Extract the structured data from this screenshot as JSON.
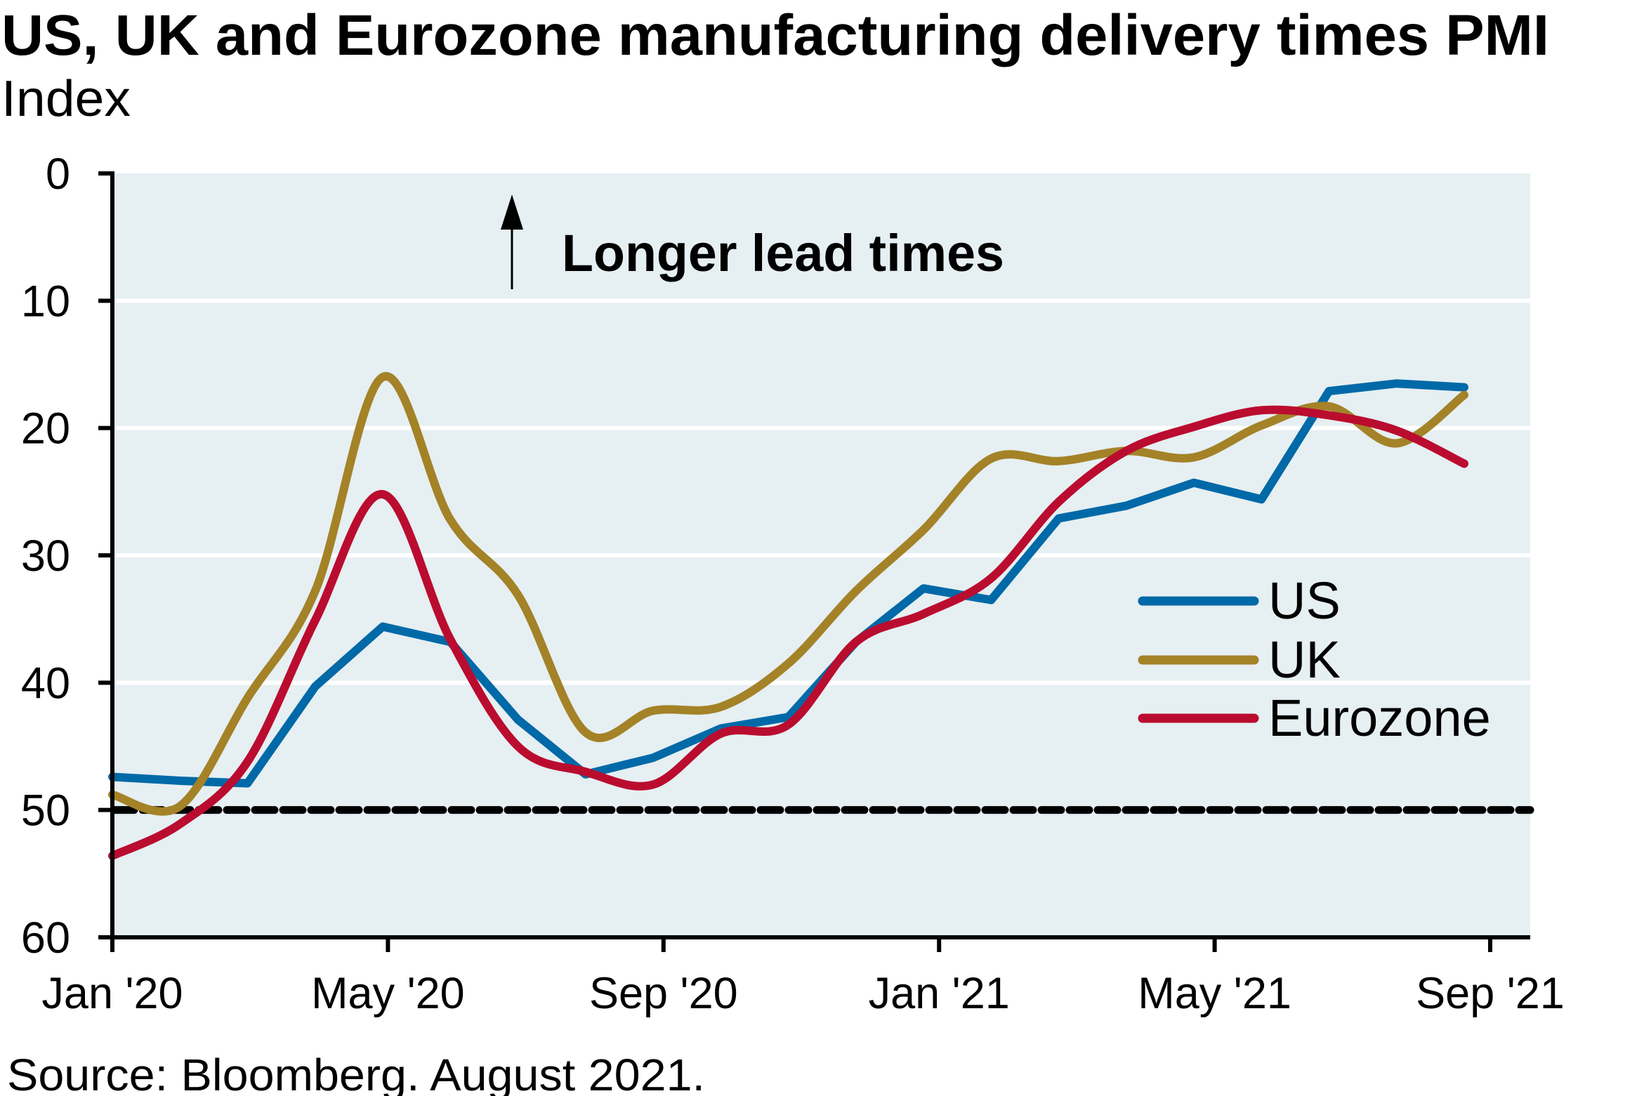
{
  "chart_data": {
    "type": "line",
    "title": "US, UK and Eurozone manufacturing delivery times PMI",
    "subtitle": "Index",
    "source": "Source: Bloomberg. August 2021.",
    "annotation": "Longer lead times",
    "xlabel": "",
    "ylabel": "Index",
    "y_inverted": true,
    "ylim": [
      0,
      60
    ],
    "yticks": [
      "0",
      "10",
      "20",
      "30",
      "40",
      "50",
      "60"
    ],
    "ytick_values": [
      0,
      10,
      20,
      30,
      40,
      50,
      60
    ],
    "xticks": [
      "Jan '20",
      "May '20",
      "Sep '20",
      "Jan '21",
      "May '21",
      "Sep '21"
    ],
    "reference_line": {
      "value": 50,
      "style": "dashed"
    },
    "grid": true,
    "legend_position": "right",
    "x": [
      "Jan '20",
      "Feb '20",
      "Mar '20",
      "Apr '20",
      "May '20",
      "Jun '20",
      "Jul '20",
      "Aug '20",
      "Sep '20",
      "Oct '20",
      "Nov '20",
      "Dec '20",
      "Jan '21",
      "Feb '21",
      "Mar '21",
      "Apr '21",
      "May '21",
      "Jun '21",
      "Jul '21",
      "Aug '21",
      "Sep '21"
    ],
    "series": [
      {
        "name": "US",
        "color": "#0069A7",
        "smooth": false,
        "values": [
          47.4,
          47.7,
          47.9,
          40.3,
          35.6,
          36.8,
          42.9,
          47.2,
          45.9,
          43.6,
          42.7,
          36.8,
          32.6,
          33.5,
          27.1,
          26.1,
          24.3,
          25.6,
          17.1,
          16.5,
          16.8
        ]
      },
      {
        "name": "UK",
        "color": "#A48227",
        "smooth": true,
        "values": [
          48.8,
          49.7,
          41.2,
          32.8,
          16.0,
          27.2,
          33.1,
          43.9,
          42.2,
          41.9,
          38.5,
          32.8,
          28.0,
          22.4,
          22.6,
          21.8,
          22.3,
          19.8,
          18.3,
          21.2,
          17.4
        ]
      },
      {
        "name": "Eurozone",
        "color": "#BA0C2F",
        "smooth": true,
        "values": [
          53.6,
          51.1,
          46.2,
          35.1,
          25.2,
          36.6,
          45.0,
          47.0,
          48.0,
          44.0,
          43.3,
          36.8,
          34.6,
          31.8,
          25.8,
          21.8,
          19.9,
          18.6,
          19.0,
          20.2,
          22.8
        ]
      }
    ],
    "colors": {
      "plot_background": "#E6EFF2",
      "gridline": "#FFFFFF",
      "axis": "#000000"
    }
  }
}
